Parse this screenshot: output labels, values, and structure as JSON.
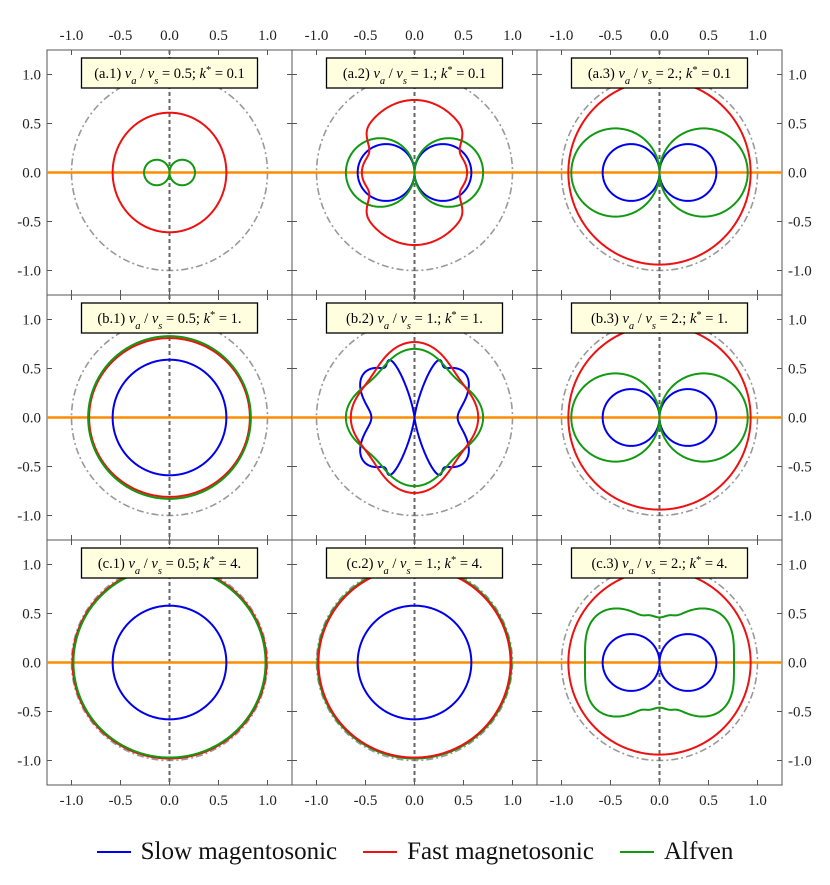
{
  "chart_data": {
    "type": "polar-curves",
    "axes": {
      "xlim": [
        -1.25,
        1.25
      ],
      "ylim": [
        -1.25,
        1.25
      ],
      "xticks": [
        "-1.0",
        "-0.5",
        "0.0",
        "0.5",
        "1.0"
      ],
      "yticks": [
        "-1.0",
        "-0.5",
        "0.0",
        "0.5",
        "1.0"
      ],
      "tick_values": [
        -1.0,
        -0.5,
        0.0,
        0.5,
        1.0
      ],
      "reference_circle_radius": 1.0,
      "horizontal_line": "orange",
      "vertical_line": "dashed gray",
      "grid": false
    },
    "colors": {
      "slow": "#0000ee",
      "fast": "#ee1111",
      "alfven": "#119911",
      "reference": "#999999",
      "axis_line": "#ff8c00",
      "dashed": "#666666",
      "label_bg": "#ffffe0"
    },
    "legend": [
      {
        "key": "slow",
        "label": "Slow magentosonic"
      },
      {
        "key": "fast",
        "label": "Fast magnetosonic"
      },
      {
        "key": "alfven",
        "label": "Alfven"
      }
    ],
    "panels": [
      {
        "label": "(a.1) v_a / v_s = 0.5; k* = 0.1",
        "id": "(a.1)",
        "ratio": "0.5",
        "kstar": "0.1",
        "curves": [
          {
            "series": "alfven",
            "shape": "double-circle",
            "center_x": 0.13,
            "radius": 0.13
          },
          {
            "series": "fast",
            "shape": "ellipse",
            "rx": 0.58,
            "ry": 0.61
          }
        ]
      },
      {
        "label": "(a.2) v_a / v_s = 1.; k* = 0.1",
        "id": "(a.2)",
        "ratio": "1.",
        "kstar": "0.1",
        "curves": [
          {
            "series": "slow",
            "shape": "double-circle",
            "center_x": 0.29,
            "radius": 0.29
          },
          {
            "series": "alfven",
            "shape": "double-circle",
            "center_x": 0.35,
            "radius": 0.35
          },
          {
            "series": "fast",
            "shape": "peanut",
            "rx": 0.62,
            "ry": 0.74,
            "waist": 0.13
          }
        ]
      },
      {
        "label": "(a.3) v_a / v_s = 2.; k* = 0.1",
        "id": "(a.3)",
        "ratio": "2.",
        "kstar": "0.1",
        "curves": [
          {
            "series": "slow",
            "shape": "double-circle",
            "center_x": 0.29,
            "radius": 0.29
          },
          {
            "series": "alfven",
            "shape": "double-circle",
            "center_x": 0.45,
            "radius": 0.45
          },
          {
            "series": "fast",
            "shape": "ellipse",
            "rx": 0.93,
            "ry": 0.94
          }
        ]
      },
      {
        "label": "(b.1) v_a / v_s = 0.5; k* = 1.",
        "id": "(b.1)",
        "ratio": "0.5",
        "kstar": "1.",
        "curves": [
          {
            "series": "slow",
            "shape": "ellipse",
            "rx": 0.58,
            "ry": 0.59
          },
          {
            "series": "fast",
            "shape": "ellipse",
            "rx": 0.82,
            "ry": 0.81
          },
          {
            "series": "alfven",
            "shape": "ellipse",
            "rx": 0.83,
            "ry": 0.83
          }
        ]
      },
      {
        "label": "(b.2) v_a / v_s = 1.; k* = 1.",
        "id": "(b.2)",
        "ratio": "1.",
        "kstar": "1.",
        "curves": [
          {
            "series": "slow",
            "shape": "polar-blob",
            "a0": 0.52,
            "a2": 0.08,
            "a4": -0.16,
            "cusp": 0.34
          },
          {
            "series": "alfven",
            "shape": "polar-blob",
            "a0": 0.64,
            "a2": 0.0,
            "a4": 0.06
          },
          {
            "series": "fast",
            "shape": "polar-blob",
            "a0": 0.66,
            "a2": -0.06,
            "a4": 0.05
          }
        ]
      },
      {
        "label": "(b.3) v_a / v_s = 2.; k* = 1.",
        "id": "(b.3)",
        "ratio": "2.",
        "kstar": "1.",
        "curves": [
          {
            "series": "slow",
            "shape": "double-circle",
            "center_x": 0.29,
            "radius": 0.29
          },
          {
            "series": "alfven",
            "shape": "double-circle",
            "center_x": 0.45,
            "radius": 0.45
          },
          {
            "series": "fast",
            "shape": "ellipse",
            "rx": 0.93,
            "ry": 0.94
          }
        ]
      },
      {
        "label": "(c.1) v_a / v_s = 0.5; k* = 4.",
        "id": "(c.1)",
        "ratio": "0.5",
        "kstar": "4.",
        "curves": [
          {
            "series": "slow",
            "shape": "ellipse",
            "rx": 0.58,
            "ry": 0.58
          },
          {
            "series": "fast",
            "shape": "ellipse",
            "rx": 0.99,
            "ry": 0.98
          },
          {
            "series": "alfven",
            "shape": "ellipse",
            "rx": 0.98,
            "ry": 0.97
          }
        ]
      },
      {
        "label": "(c.2) v_a / v_s = 1.; k* = 4.",
        "id": "(c.2)",
        "ratio": "1.",
        "kstar": "4.",
        "curves": [
          {
            "series": "slow",
            "shape": "ellipse",
            "rx": 0.58,
            "ry": 0.58
          },
          {
            "series": "alfven",
            "shape": "ellipse",
            "rx": 0.99,
            "ry": 0.98
          },
          {
            "series": "fast",
            "shape": "ellipse",
            "rx": 0.98,
            "ry": 0.97
          }
        ]
      },
      {
        "label": "(c.3) v_a / v_s = 2.; k* = 4.",
        "id": "(c.3)",
        "ratio": "2.",
        "kstar": "4.",
        "curves": [
          {
            "series": "slow",
            "shape": "double-circle",
            "center_x": 0.29,
            "radius": 0.29
          },
          {
            "series": "alfven",
            "shape": "polar-blob",
            "a0": 0.66,
            "a2": 0.2,
            "a4": -0.1,
            "bump": 0.1
          },
          {
            "series": "fast",
            "shape": "ellipse",
            "rx": 0.93,
            "ry": 0.94
          }
        ]
      }
    ]
  }
}
